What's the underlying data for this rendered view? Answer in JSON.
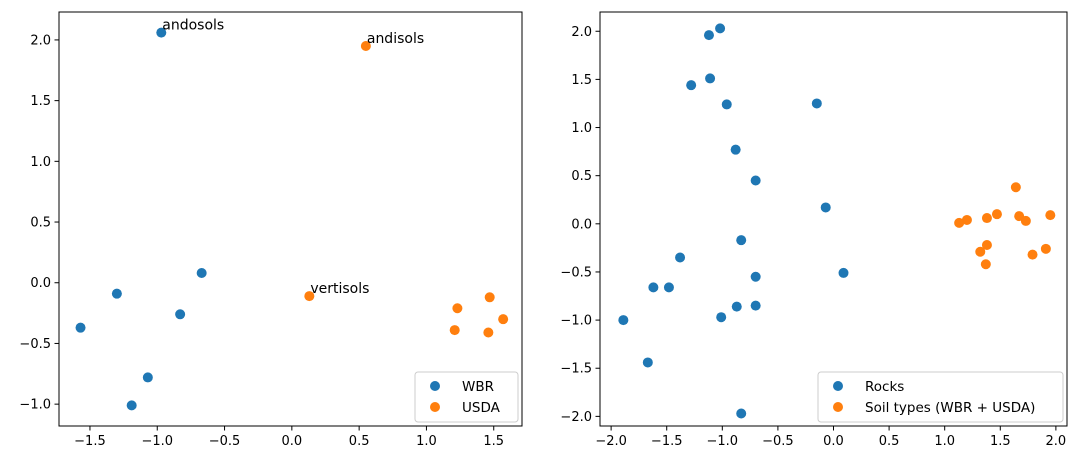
{
  "colors": {
    "series0": "#1f77b4",
    "series1": "#ff7f0e",
    "axis": "#000000"
  },
  "chart_data": [
    {
      "type": "scatter",
      "xlim": [
        -1.73,
        1.71
      ],
      "ylim": [
        -1.18,
        2.23
      ],
      "xticks": [
        -1.5,
        -1.0,
        -0.5,
        0.0,
        0.5,
        1.0,
        1.5
      ],
      "yticks": [
        -1.0,
        -0.5,
        0.0,
        0.5,
        1.0,
        1.5,
        2.0
      ],
      "xtick_labels": [
        "−1.5",
        "−1.0",
        "−0.5",
        "0.0",
        "0.5",
        "1.0",
        "1.5"
      ],
      "ytick_labels": [
        "−1.0",
        "−0.5",
        "0.0",
        "0.5",
        "1.0",
        "1.5",
        "2.0"
      ],
      "legend_position": "lower-right",
      "grid": false,
      "series": [
        {
          "name": "WBR",
          "points": [
            [
              -0.97,
              2.06
            ],
            [
              -1.57,
              -0.37
            ],
            [
              -1.3,
              -0.09
            ],
            [
              -0.67,
              0.08
            ],
            [
              -0.83,
              -0.26
            ],
            [
              -1.07,
              -0.78
            ],
            [
              -1.19,
              -1.01
            ]
          ]
        },
        {
          "name": "USDA",
          "points": [
            [
              0.55,
              1.95
            ],
            [
              0.13,
              -0.11
            ],
            [
              1.23,
              -0.21
            ],
            [
              1.47,
              -0.12
            ],
            [
              1.21,
              -0.39
            ],
            [
              1.46,
              -0.41
            ],
            [
              1.57,
              -0.3
            ]
          ]
        }
      ],
      "annotations": [
        {
          "text": "andosols",
          "x": -0.97,
          "y": 2.06
        },
        {
          "text": "andisols",
          "x": 0.55,
          "y": 1.95
        },
        {
          "text": "vertisols",
          "x": 0.13,
          "y": -0.11
        }
      ]
    },
    {
      "type": "scatter",
      "xlim": [
        -2.1,
        2.1
      ],
      "ylim": [
        -2.1,
        2.2
      ],
      "xticks": [
        -2.0,
        -1.5,
        -1.0,
        -0.5,
        0.0,
        0.5,
        1.0,
        1.5,
        2.0
      ],
      "yticks": [
        -2.0,
        -1.5,
        -1.0,
        -0.5,
        0.0,
        0.5,
        1.0,
        1.5,
        2.0
      ],
      "xtick_labels": [
        "−2.0",
        "−1.5",
        "−1.0",
        "−0.5",
        "0.0",
        "0.5",
        "1.0",
        "1.5",
        "2.0"
      ],
      "ytick_labels": [
        "−2.0",
        "−1.5",
        "−1.0",
        "−0.5",
        "0.0",
        "0.5",
        "1.0",
        "1.5",
        "2.0"
      ],
      "legend_position": "lower-right",
      "grid": false,
      "series": [
        {
          "name": "Rocks",
          "points": [
            [
              -1.02,
              2.03
            ],
            [
              -1.12,
              1.96
            ],
            [
              -1.11,
              1.51
            ],
            [
              -1.28,
              1.44
            ],
            [
              -0.96,
              1.24
            ],
            [
              -0.15,
              1.25
            ],
            [
              -0.88,
              0.77
            ],
            [
              -0.7,
              0.45
            ],
            [
              -0.07,
              0.17
            ],
            [
              -0.83,
              -0.17
            ],
            [
              -1.38,
              -0.35
            ],
            [
              -0.7,
              -0.55
            ],
            [
              0.09,
              -0.51
            ],
            [
              -1.62,
              -0.66
            ],
            [
              -1.48,
              -0.66
            ],
            [
              -0.87,
              -0.86
            ],
            [
              -0.7,
              -0.85
            ],
            [
              -1.89,
              -1.0
            ],
            [
              -1.01,
              -0.97
            ],
            [
              -1.67,
              -1.44
            ],
            [
              -0.83,
              -1.97
            ]
          ]
        },
        {
          "name": "Soil types (WBR + USDA)",
          "points": [
            [
              1.64,
              0.38
            ],
            [
              1.95,
              0.09
            ],
            [
              1.47,
              0.1
            ],
            [
              1.67,
              0.08
            ],
            [
              1.38,
              0.06
            ],
            [
              1.2,
              0.04
            ],
            [
              1.73,
              0.03
            ],
            [
              1.13,
              0.01
            ],
            [
              1.38,
              -0.22
            ],
            [
              1.91,
              -0.26
            ],
            [
              1.32,
              -0.29
            ],
            [
              1.79,
              -0.32
            ],
            [
              1.37,
              -0.42
            ]
          ]
        }
      ]
    }
  ]
}
